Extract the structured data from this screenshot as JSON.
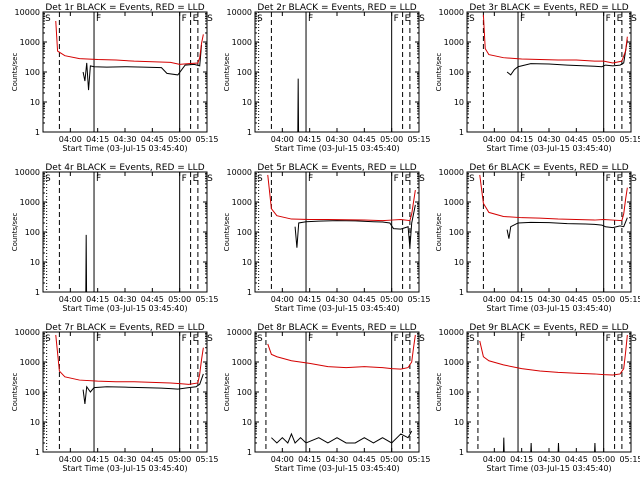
{
  "chart_data": {
    "type": "line",
    "layout": "3x3 grid",
    "y_scale": "log",
    "ylim": [
      1,
      10000
    ],
    "y_ticks": [
      "1",
      "10",
      "100",
      "1000",
      "10000"
    ],
    "ylabel": "Counts/sec",
    "xlim_minutes": [
      0,
      90
    ],
    "x_ticks": [
      "04:00",
      "04:15",
      "04:30",
      "04:45",
      "05:00",
      "05:15"
    ],
    "xlabel": "Start Time (03-Jul-15 03:45:40)",
    "colors": {
      "events": "#000000",
      "lld": "#d40000"
    },
    "panels": [
      {
        "title": "Det 1r BLACK = Events, RED = LLD",
        "markers": [
          {
            "m": 0,
            "t": "S"
          },
          {
            "m": 28,
            "t": "F"
          },
          {
            "m": 75,
            "t": "F"
          },
          {
            "m": 81,
            "t": "E"
          },
          {
            "m": 89,
            "t": "S"
          }
        ],
        "solid_lines": [
          28,
          75
        ],
        "dashed_lines": [
          9,
          81,
          85
        ],
        "dotted_lines": [],
        "events": [
          [
            22,
            100
          ],
          [
            23,
            50
          ],
          [
            24,
            200
          ],
          [
            25,
            25
          ],
          [
            26,
            160
          ],
          [
            28,
            150
          ],
          [
            35,
            145
          ],
          [
            45,
            150
          ],
          [
            55,
            145
          ],
          [
            65,
            140
          ],
          [
            68,
            90
          ],
          [
            74,
            80
          ],
          [
            78,
            170
          ],
          [
            83,
            180
          ],
          [
            86,
            160
          ],
          [
            87,
            800
          ]
        ],
        "lld": [
          [
            7,
            5000
          ],
          [
            8,
            500
          ],
          [
            12,
            350
          ],
          [
            20,
            280
          ],
          [
            30,
            260
          ],
          [
            40,
            250
          ],
          [
            50,
            230
          ],
          [
            60,
            220
          ],
          [
            70,
            210
          ],
          [
            75,
            180
          ],
          [
            80,
            190
          ],
          [
            85,
            200
          ],
          [
            86,
            300
          ],
          [
            87,
            900
          ],
          [
            88,
            1800
          ]
        ]
      },
      {
        "title": "Det 2r BLACK = Events, RED = LLD",
        "markers": [
          {
            "m": 0,
            "t": "S"
          },
          {
            "m": 28,
            "t": "F"
          },
          {
            "m": 75,
            "t": "F"
          },
          {
            "m": 81,
            "t": "E"
          },
          {
            "m": 89,
            "t": "S"
          }
        ],
        "solid_lines": [
          28,
          75
        ],
        "dashed_lines": [
          9,
          81,
          85
        ],
        "dotted_lines": [
          2
        ],
        "events": [
          [
            23.5,
            1
          ],
          [
            23.7,
            60
          ],
          [
            23.9,
            1
          ]
        ],
        "lld": []
      },
      {
        "title": "Det 3r BLACK = Events, RED = LLD",
        "markers": [
          {
            "m": 0,
            "t": "S"
          },
          {
            "m": 28,
            "t": "F"
          },
          {
            "m": 75,
            "t": "F"
          },
          {
            "m": 81,
            "t": "E"
          },
          {
            "m": 89,
            "t": "S"
          }
        ],
        "solid_lines": [
          28,
          75
        ],
        "dashed_lines": [
          9,
          81,
          85
        ],
        "dotted_lines": [],
        "events": [
          [
            22,
            100
          ],
          [
            24,
            80
          ],
          [
            26,
            120
          ],
          [
            28,
            150
          ],
          [
            35,
            190
          ],
          [
            45,
            185
          ],
          [
            55,
            170
          ],
          [
            65,
            160
          ],
          [
            70,
            155
          ],
          [
            74,
            150
          ],
          [
            76,
            170
          ],
          [
            80,
            160
          ],
          [
            84,
            170
          ],
          [
            86,
            200
          ],
          [
            88,
            1200
          ]
        ],
        "lld": [
          [
            9,
            8000
          ],
          [
            10,
            600
          ],
          [
            12,
            380
          ],
          [
            20,
            300
          ],
          [
            30,
            270
          ],
          [
            40,
            260
          ],
          [
            50,
            250
          ],
          [
            60,
            250
          ],
          [
            70,
            230
          ],
          [
            75,
            230
          ],
          [
            80,
            200
          ],
          [
            85,
            230
          ],
          [
            87,
            500
          ],
          [
            88,
            1500
          ]
        ]
      },
      {
        "title": "Det 4r BLACK = Events, RED = LLD",
        "markers": [
          {
            "m": 0,
            "t": "S"
          },
          {
            "m": 28,
            "t": "F"
          },
          {
            "m": 75,
            "t": "F"
          },
          {
            "m": 81,
            "t": "E"
          },
          {
            "m": 89,
            "t": "S"
          }
        ],
        "solid_lines": [
          28,
          75
        ],
        "dashed_lines": [
          9,
          81,
          85
        ],
        "dotted_lines": [
          2
        ],
        "events": [
          [
            23.5,
            1
          ],
          [
            23.7,
            80
          ],
          [
            23.9,
            1
          ]
        ],
        "lld": []
      },
      {
        "title": "Det 5r BLACK = Events, RED = LLD",
        "markers": [
          {
            "m": 0,
            "t": "S"
          },
          {
            "m": 28,
            "t": "F"
          },
          {
            "m": 75,
            "t": "F"
          },
          {
            "m": 81,
            "t": "E"
          },
          {
            "m": 89,
            "t": "S"
          }
        ],
        "solid_lines": [
          28,
          75
        ],
        "dashed_lines": [
          9,
          81,
          85
        ],
        "dotted_lines": [
          2
        ],
        "events": [
          [
            22,
            150
          ],
          [
            23,
            30
          ],
          [
            24,
            200
          ],
          [
            28,
            220
          ],
          [
            35,
            230
          ],
          [
            45,
            240
          ],
          [
            55,
            235
          ],
          [
            65,
            220
          ],
          [
            70,
            215
          ],
          [
            74,
            200
          ],
          [
            76,
            130
          ],
          [
            80,
            125
          ],
          [
            84,
            150
          ],
          [
            85,
            30
          ],
          [
            86,
            200
          ],
          [
            88,
            800
          ]
        ],
        "lld": [
          [
            7,
            8000
          ],
          [
            9,
            600
          ],
          [
            12,
            350
          ],
          [
            20,
            270
          ],
          [
            30,
            260
          ],
          [
            40,
            260
          ],
          [
            50,
            255
          ],
          [
            60,
            250
          ],
          [
            70,
            240
          ],
          [
            75,
            250
          ],
          [
            80,
            260
          ],
          [
            85,
            240
          ],
          [
            86,
            400
          ],
          [
            87,
            1000
          ],
          [
            88,
            2500
          ]
        ]
      },
      {
        "title": "Det 6r BLACK = Events, RED = LLD",
        "markers": [
          {
            "m": 0,
            "t": "S"
          },
          {
            "m": 28,
            "t": "F"
          },
          {
            "m": 75,
            "t": "F"
          },
          {
            "m": 81,
            "t": "E"
          },
          {
            "m": 89,
            "t": "S"
          }
        ],
        "solid_lines": [
          28,
          75
        ],
        "dashed_lines": [
          9,
          81,
          85
        ],
        "dotted_lines": [],
        "events": [
          [
            22,
            120
          ],
          [
            23,
            60
          ],
          [
            24,
            150
          ],
          [
            28,
            200
          ],
          [
            35,
            210
          ],
          [
            45,
            205
          ],
          [
            55,
            190
          ],
          [
            65,
            185
          ],
          [
            70,
            180
          ],
          [
            74,
            170
          ],
          [
            76,
            150
          ],
          [
            80,
            140
          ],
          [
            84,
            160
          ],
          [
            86,
            150
          ],
          [
            88,
            300
          ]
        ],
        "lld": [
          [
            7,
            8000
          ],
          [
            9,
            900
          ],
          [
            12,
            450
          ],
          [
            20,
            330
          ],
          [
            30,
            300
          ],
          [
            40,
            290
          ],
          [
            50,
            270
          ],
          [
            60,
            260
          ],
          [
            70,
            250
          ],
          [
            75,
            260
          ],
          [
            80,
            250
          ],
          [
            85,
            240
          ],
          [
            86,
            400
          ],
          [
            87,
            1200
          ],
          [
            88,
            3000
          ]
        ]
      },
      {
        "title": "Det 7r BLACK = Events, RED = LLD",
        "markers": [
          {
            "m": 0,
            "t": "S"
          },
          {
            "m": 28,
            "t": "F"
          },
          {
            "m": 75,
            "t": "F"
          },
          {
            "m": 81,
            "t": "E"
          },
          {
            "m": 89,
            "t": "S"
          }
        ],
        "solid_lines": [
          28,
          75
        ],
        "dashed_lines": [
          9,
          81,
          85
        ],
        "dotted_lines": [
          2
        ],
        "events": [
          [
            22,
            120
          ],
          [
            23,
            40
          ],
          [
            24,
            150
          ],
          [
            26,
            100
          ],
          [
            28,
            140
          ],
          [
            35,
            150
          ],
          [
            45,
            145
          ],
          [
            55,
            140
          ],
          [
            65,
            135
          ],
          [
            70,
            130
          ],
          [
            74,
            125
          ],
          [
            80,
            140
          ],
          [
            84,
            150
          ],
          [
            86,
            180
          ],
          [
            88,
            400
          ]
        ],
        "lld": [
          [
            7,
            8000
          ],
          [
            9,
            500
          ],
          [
            12,
            320
          ],
          [
            20,
            250
          ],
          [
            30,
            230
          ],
          [
            40,
            220
          ],
          [
            50,
            220
          ],
          [
            60,
            210
          ],
          [
            70,
            200
          ],
          [
            75,
            190
          ],
          [
            80,
            180
          ],
          [
            85,
            200
          ],
          [
            86,
            400
          ],
          [
            87,
            1200
          ],
          [
            88,
            3000
          ]
        ]
      },
      {
        "title": "Det 8r BLACK = Events, RED = LLD",
        "markers": [
          {
            "m": 0,
            "t": "S"
          },
          {
            "m": 28,
            "t": "F"
          },
          {
            "m": 75,
            "t": "F"
          },
          {
            "m": 81,
            "t": "E"
          },
          {
            "m": 89,
            "t": "S"
          }
        ],
        "solid_lines": [
          28,
          75
        ],
        "dashed_lines": [
          6,
          81,
          85
        ],
        "dotted_lines": [],
        "events": [
          [
            9,
            3
          ],
          [
            12,
            2
          ],
          [
            15,
            3
          ],
          [
            18,
            2
          ],
          [
            20,
            4
          ],
          [
            22,
            2
          ],
          [
            25,
            3
          ],
          [
            28,
            2
          ],
          [
            35,
            3
          ],
          [
            40,
            2
          ],
          [
            45,
            3
          ],
          [
            50,
            2
          ],
          [
            55,
            2
          ],
          [
            60,
            3
          ],
          [
            65,
            2
          ],
          [
            70,
            3
          ],
          [
            75,
            2
          ],
          [
            80,
            4
          ],
          [
            84,
            3
          ],
          [
            86,
            5
          ]
        ],
        "lld": [
          [
            7,
            4000
          ],
          [
            9,
            1800
          ],
          [
            12,
            1500
          ],
          [
            20,
            1100
          ],
          [
            30,
            900
          ],
          [
            40,
            700
          ],
          [
            50,
            650
          ],
          [
            60,
            700
          ],
          [
            70,
            650
          ],
          [
            75,
            600
          ],
          [
            80,
            580
          ],
          [
            84,
            650
          ],
          [
            86,
            1000
          ],
          [
            87,
            3000
          ],
          [
            88,
            8000
          ]
        ]
      },
      {
        "title": "Det 9r BLACK = Events, RED = LLD",
        "markers": [
          {
            "m": 0,
            "t": "S"
          },
          {
            "m": 28,
            "t": "F"
          },
          {
            "m": 75,
            "t": "F"
          },
          {
            "m": 81,
            "t": "E"
          },
          {
            "m": 89,
            "t": "S"
          }
        ],
        "solid_lines": [
          28,
          75
        ],
        "dashed_lines": [
          6,
          81,
          85
        ],
        "dotted_lines": [],
        "events": [
          [
            20,
            1
          ],
          [
            20.2,
            3
          ],
          [
            20.4,
            1
          ],
          [
            35,
            1
          ],
          [
            35.2,
            2
          ],
          [
            35.4,
            1
          ],
          [
            50,
            1
          ],
          [
            50.2,
            2
          ],
          [
            50.4,
            1
          ],
          [
            70,
            1
          ],
          [
            70.2,
            2
          ],
          [
            70.4,
            1
          ]
        ],
        "lld": [
          [
            7,
            5000
          ],
          [
            9,
            1500
          ],
          [
            12,
            1100
          ],
          [
            20,
            800
          ],
          [
            30,
            600
          ],
          [
            40,
            500
          ],
          [
            50,
            450
          ],
          [
            60,
            420
          ],
          [
            70,
            400
          ],
          [
            75,
            380
          ],
          [
            80,
            370
          ],
          [
            84,
            400
          ],
          [
            86,
            600
          ],
          [
            87,
            2000
          ],
          [
            88,
            8000
          ]
        ]
      }
    ]
  }
}
